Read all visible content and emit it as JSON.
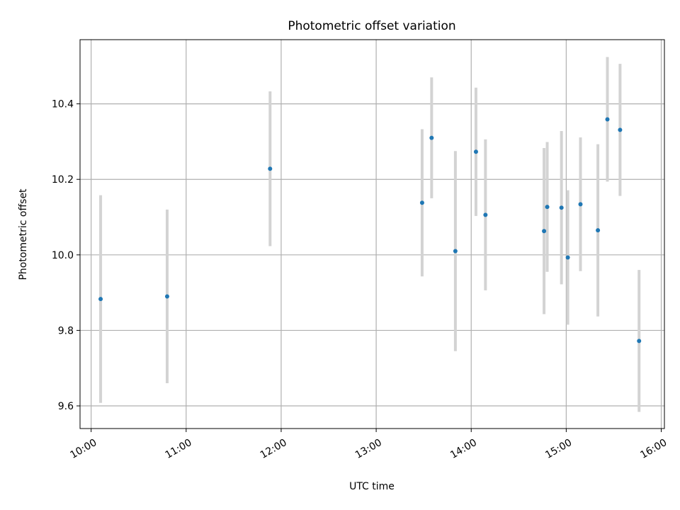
{
  "chart_data": {
    "type": "scatter",
    "title": "Photometric offset variation",
    "xlabel": "UTC time",
    "ylabel": "Photometric offset",
    "xlim": [
      "09:53",
      "16:02"
    ],
    "ylim": [
      9.54,
      10.57
    ],
    "x_ticks": [
      "10:00",
      "11:00",
      "12:00",
      "13:00",
      "14:00",
      "15:00",
      "16:00"
    ],
    "y_ticks": [
      9.6,
      9.8,
      10.0,
      10.2,
      10.4
    ],
    "grid": true,
    "colors": {
      "point": "#1f77b4",
      "errorbar": "#d3d3d3",
      "grid": "#b0b0b0"
    },
    "points": [
      {
        "t": "10:06",
        "y": 9.883,
        "err": 0.275
      },
      {
        "t": "10:48",
        "y": 9.89,
        "err": 0.23
      },
      {
        "t": "11:53",
        "y": 10.228,
        "err": 0.205
      },
      {
        "t": "13:29",
        "y": 10.138,
        "err": 0.195
      },
      {
        "t": "13:35",
        "y": 10.31,
        "err": 0.16
      },
      {
        "t": "13:50",
        "y": 10.01,
        "err": 0.265
      },
      {
        "t": "14:03",
        "y": 10.273,
        "err": 0.17
      },
      {
        "t": "14:09",
        "y": 10.106,
        "err": 0.2
      },
      {
        "t": "14:46",
        "y": 10.063,
        "err": 0.22
      },
      {
        "t": "14:48",
        "y": 10.127,
        "err": 0.172
      },
      {
        "t": "14:57",
        "y": 10.125,
        "err": 0.203
      },
      {
        "t": "15:01",
        "y": 9.993,
        "err": 0.178
      },
      {
        "t": "15:09",
        "y": 10.134,
        "err": 0.177
      },
      {
        "t": "15:20",
        "y": 10.065,
        "err": 0.228
      },
      {
        "t": "15:26",
        "y": 10.359,
        "err": 0.165
      },
      {
        "t": "15:34",
        "y": 10.331,
        "err": 0.175
      },
      {
        "t": "15:46",
        "y": 9.772,
        "err": 0.188
      }
    ]
  }
}
